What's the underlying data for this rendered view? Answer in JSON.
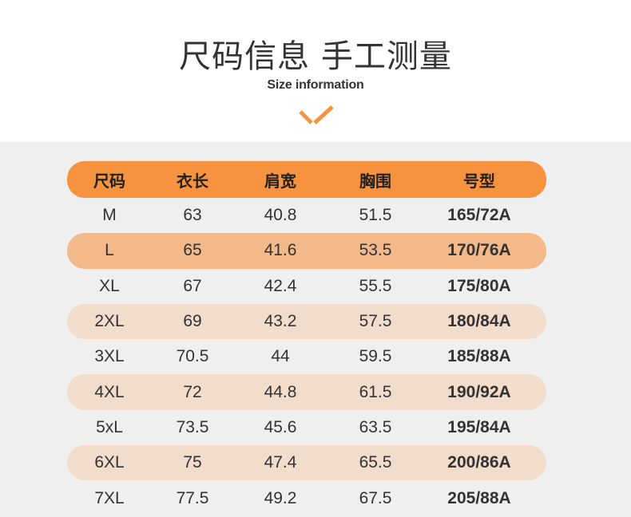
{
  "header": {
    "title": "尺码信息 手工测量",
    "subtitle": "Size information",
    "chevron_icon": "chevron-down-icon",
    "accent_color": "#f7923e"
  },
  "table": {
    "columns": [
      "尺码",
      "衣长",
      "肩宽",
      "胸围",
      "号型"
    ],
    "rows": [
      [
        "M",
        "63",
        "40.8",
        "51.5",
        "165/72A"
      ],
      [
        "L",
        "65",
        "41.6",
        "53.5",
        "170/76A"
      ],
      [
        "XL",
        "67",
        "42.4",
        "55.5",
        "175/80A"
      ],
      [
        "2XL",
        "69",
        "43.2",
        "57.5",
        "180/84A"
      ],
      [
        "3XL",
        "70.5",
        "44",
        "59.5",
        "185/88A"
      ],
      [
        "4XL",
        "72",
        "44.8",
        "61.5",
        "190/92A"
      ],
      [
        "5xL",
        "73.5",
        "45.6",
        "63.5",
        "195/84A"
      ],
      [
        "6XL",
        "75",
        "47.4",
        "65.5",
        "200/86A"
      ],
      [
        "7XL",
        "77.5",
        "49.2",
        "67.5",
        "205/88A"
      ]
    ],
    "colors": {
      "header_bg": "#f7923e",
      "highlight_dark": "#f4b98a",
      "highlight_light": "#f2dccb",
      "panel_bg": "#efefef"
    }
  }
}
